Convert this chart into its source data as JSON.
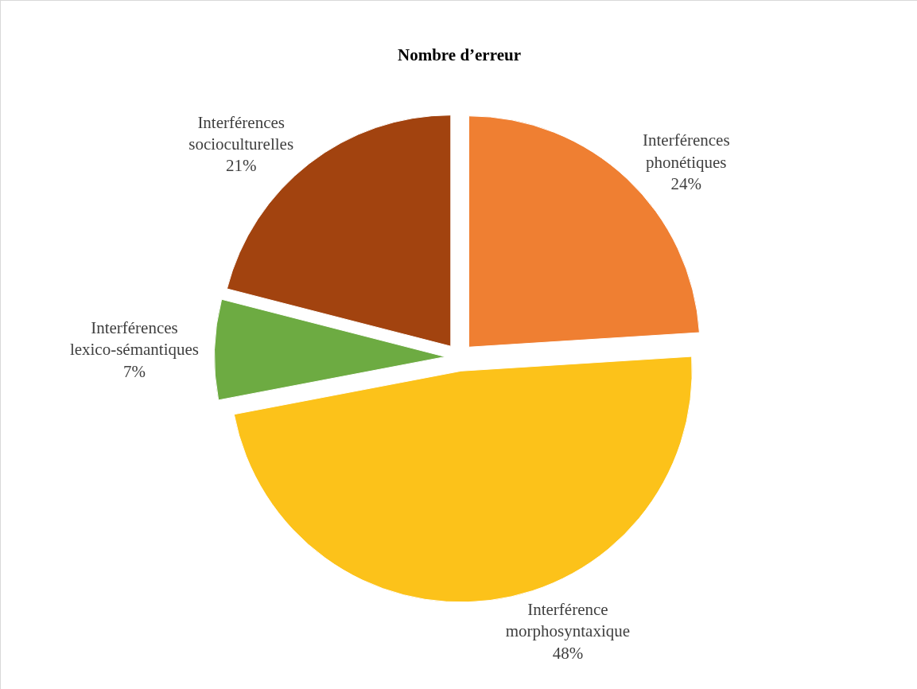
{
  "chart_data": {
    "type": "pie",
    "title": "Nombre d’erreur",
    "categories": [
      "Interférences phonétiques",
      "Interférence morphosyntaxique",
      "Interférences lexico-sémantiques",
      "Interférences socioculturelles"
    ],
    "values": [
      24,
      48,
      7,
      21
    ],
    "value_labels": [
      "24%",
      "48%",
      "7%",
      "21%"
    ],
    "colors": [
      "#ef7f32",
      "#fcc21a",
      "#6dab42",
      "#a2430f"
    ],
    "legend": false
  }
}
